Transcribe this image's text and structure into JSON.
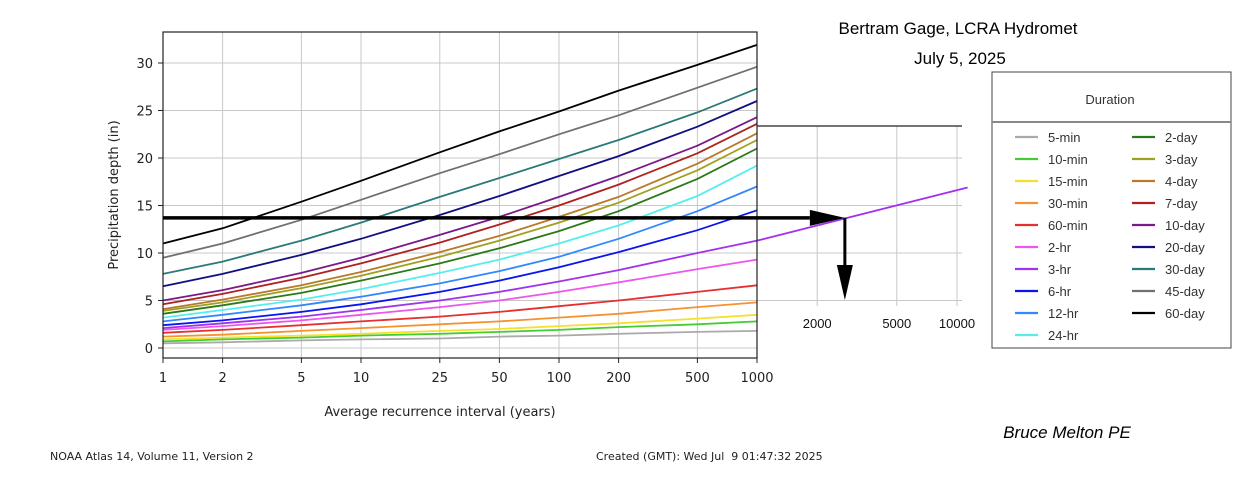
{
  "chart_data": {
    "type": "line",
    "title": "Bertram Gage, LCRA Hydromet",
    "subtitle": "July 5, 2025",
    "xlabel": "Average recurrence interval (years)",
    "ylabel": "Precipitation depth (in)",
    "xscale": "log",
    "xlim": [
      1,
      1000
    ],
    "ylim": [
      -1.3,
      33
    ],
    "grid": true,
    "x": [
      1,
      2,
      5,
      10,
      25,
      50,
      100,
      200,
      500,
      1000
    ],
    "x_tick_labels": [
      "1",
      "2",
      "5",
      "10",
      "25",
      "50",
      "100",
      "200",
      "500",
      "1000"
    ],
    "y_ticks": [
      0,
      5,
      10,
      15,
      20,
      25,
      30
    ],
    "y_tick_labels": [
      "0",
      "5",
      "10",
      "15",
      "20",
      "25",
      "30"
    ],
    "legend": {
      "title": "Duration",
      "placement": "right"
    },
    "series": [
      {
        "name": "5-min",
        "color": "#aaaaaa",
        "values": [
          0.5,
          0.6,
          0.8,
          0.9,
          1.0,
          1.2,
          1.3,
          1.5,
          1.7,
          1.8
        ]
      },
      {
        "name": "10-min",
        "color": "#44cc33",
        "values": [
          0.7,
          0.9,
          1.1,
          1.3,
          1.5,
          1.7,
          1.9,
          2.2,
          2.5,
          2.8
        ]
      },
      {
        "name": "15-min",
        "color": "#f5e030",
        "values": [
          0.9,
          1.1,
          1.3,
          1.5,
          1.8,
          2.0,
          2.3,
          2.6,
          3.1,
          3.5
        ]
      },
      {
        "name": "30-min",
        "color": "#f59230",
        "values": [
          1.2,
          1.4,
          1.8,
          2.1,
          2.5,
          2.8,
          3.2,
          3.6,
          4.3,
          4.8
        ]
      },
      {
        "name": "60-min",
        "color": "#e53030",
        "values": [
          1.6,
          1.9,
          2.4,
          2.8,
          3.3,
          3.8,
          4.4,
          5.0,
          5.9,
          6.6
        ]
      },
      {
        "name": "2-hr",
        "color": "#ee55ee",
        "values": [
          1.9,
          2.3,
          2.9,
          3.5,
          4.3,
          5.0,
          5.9,
          6.9,
          8.3,
          9.3
        ]
      },
      {
        "name": "3-hr",
        "color": "#a033ee",
        "values": [
          2.1,
          2.6,
          3.3,
          4.0,
          5.0,
          5.9,
          7.0,
          8.2,
          10.0,
          11.3
        ]
      },
      {
        "name": "6-hr",
        "color": "#0a14f0",
        "values": [
          2.4,
          2.9,
          3.8,
          4.6,
          5.9,
          7.1,
          8.5,
          10.1,
          12.4,
          14.5
        ]
      },
      {
        "name": "12-hr",
        "color": "#3388ff",
        "values": [
          2.8,
          3.5,
          4.5,
          5.4,
          6.8,
          8.1,
          9.6,
          11.5,
          14.4,
          17.0
        ]
      },
      {
        "name": "24-hr",
        "color": "#55eeee",
        "values": [
          3.2,
          4.0,
          5.1,
          6.2,
          7.9,
          9.3,
          11.0,
          12.9,
          16.0,
          19.2
        ]
      },
      {
        "name": "2-day",
        "color": "#2a7a1a",
        "values": [
          3.6,
          4.5,
          5.8,
          7.1,
          8.9,
          10.5,
          12.3,
          14.4,
          17.8,
          21.0
        ]
      },
      {
        "name": "3-day",
        "color": "#a0a020",
        "values": [
          3.9,
          4.8,
          6.3,
          7.6,
          9.6,
          11.3,
          13.2,
          15.3,
          18.7,
          21.9
        ]
      },
      {
        "name": "4-day",
        "color": "#b87a2a",
        "values": [
          4.1,
          5.1,
          6.6,
          8.0,
          10.1,
          11.8,
          13.8,
          15.9,
          19.4,
          22.6
        ]
      },
      {
        "name": "7-day",
        "color": "#b02020",
        "values": [
          4.6,
          5.7,
          7.4,
          8.9,
          11.1,
          13.0,
          15.0,
          17.2,
          20.5,
          23.6
        ]
      },
      {
        "name": "10-day",
        "color": "#7a1a8a",
        "values": [
          5.0,
          6.1,
          7.9,
          9.5,
          11.9,
          13.8,
          15.9,
          18.1,
          21.3,
          24.3
        ]
      },
      {
        "name": "20-day",
        "color": "#101080",
        "values": [
          6.5,
          7.8,
          9.8,
          11.5,
          14.0,
          16.0,
          18.1,
          20.2,
          23.3,
          26.0
        ]
      },
      {
        "name": "30-day",
        "color": "#2a7a7a",
        "values": [
          7.8,
          9.1,
          11.3,
          13.2,
          15.9,
          17.9,
          19.9,
          21.9,
          24.8,
          27.3
        ]
      },
      {
        "name": "45-day",
        "color": "#707070",
        "values": [
          9.5,
          11.0,
          13.5,
          15.6,
          18.4,
          20.4,
          22.5,
          24.5,
          27.4,
          29.6
        ]
      },
      {
        "name": "60-day",
        "color": "#000000",
        "values": [
          11.0,
          12.6,
          15.4,
          17.6,
          20.6,
          22.8,
          24.9,
          27.1,
          29.8,
          31.9
        ]
      }
    ],
    "extension": {
      "x_ticks": [
        2000,
        5000,
        10000
      ],
      "x_tick_labels": [
        "2000",
        "5000",
        "10000"
      ],
      "extrapolated_series": {
        "name": "3-hr",
        "color": "#a033ee",
        "x": [
          1000,
          11300
        ],
        "values": [
          11.3,
          16.9
        ]
      },
      "annotation_depth": 13.7,
      "annotation_ari": 2750
    }
  },
  "header": {
    "title": "Bertram Gage, LCRA Hydromet",
    "date": "July 5, 2025"
  },
  "author": "Bruce Melton PE",
  "footer": {
    "source": "NOAA Atlas 14, Volume 11, Version 2",
    "created": "Created (GMT): Wed Jul  9 01:47:32 2025"
  }
}
